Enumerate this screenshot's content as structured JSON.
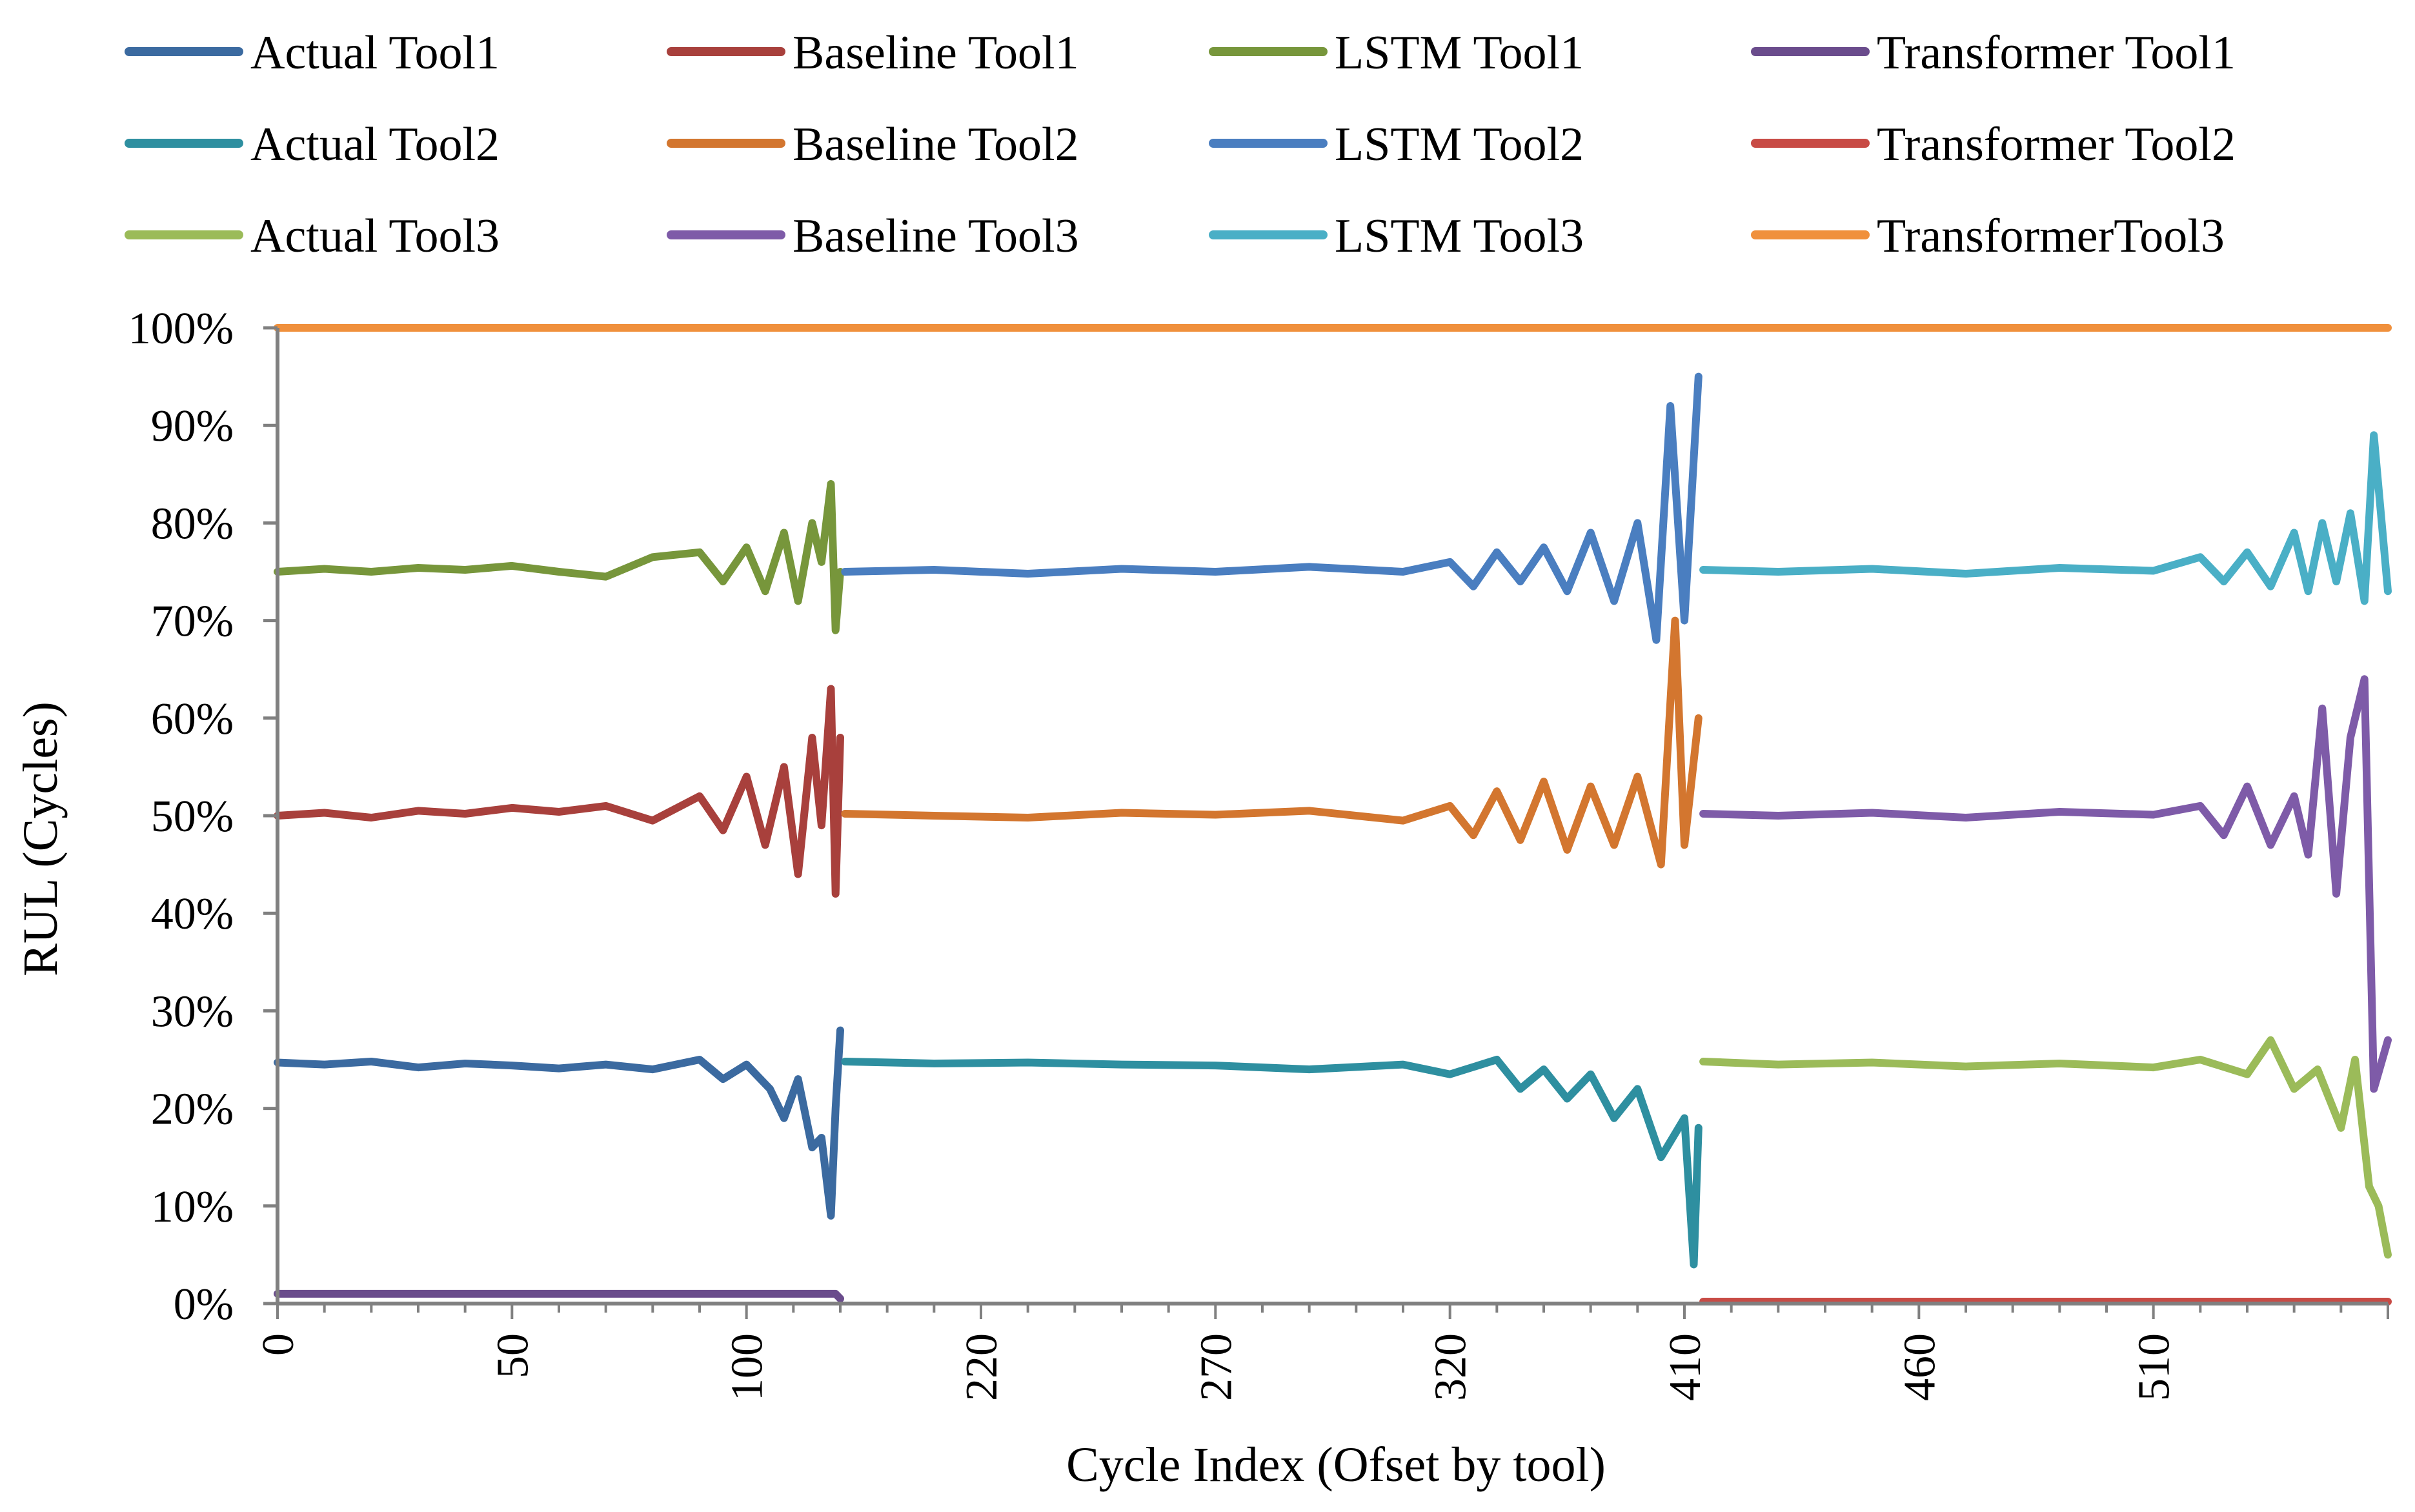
{
  "chart_data": {
    "type": "line",
    "title": "",
    "xlabel": "Cycle Index (Ofset by tool)",
    "ylabel": "RUL (Cycles)",
    "ylim": [
      0,
      100
    ],
    "y_ticks": [
      "0%",
      "10%",
      "20%",
      "30%",
      "40%",
      "50%",
      "60%",
      "70%",
      "80%",
      "90%",
      "100%"
    ],
    "x_ticks": [
      "0",
      "50",
      "100",
      "220",
      "270",
      "320",
      "410",
      "460",
      "510"
    ],
    "x_index_range": [
      0,
      450
    ],
    "grid": false,
    "legend_position": "top",
    "series": [
      {
        "name": "Actual Tool1",
        "color": "#3B6AA0",
        "x": [
          0,
          10,
          20,
          30,
          40,
          50,
          60,
          70,
          80,
          90,
          95,
          100,
          105,
          108,
          111,
          114,
          116,
          118,
          119,
          120
        ],
        "y": [
          24.7,
          24.5,
          24.8,
          24.2,
          24.6,
          24.4,
          24.1,
          24.5,
          24.0,
          25.0,
          23.0,
          24.5,
          22.0,
          19.0,
          23.0,
          16.0,
          17.0,
          9.0,
          20.0,
          28.0
        ]
      },
      {
        "name": "Baseline Tool1",
        "color": "#A8403C",
        "x": [
          0,
          10,
          20,
          30,
          40,
          50,
          60,
          70,
          80,
          90,
          95,
          100,
          104,
          108,
          111,
          114,
          116,
          118,
          119,
          120
        ],
        "y": [
          50.0,
          50.3,
          49.8,
          50.5,
          50.2,
          50.8,
          50.4,
          51.0,
          49.5,
          52.0,
          48.5,
          54.0,
          47.0,
          55.0,
          44.0,
          58.0,
          49.0,
          63.0,
          42.0,
          58.0
        ]
      },
      {
        "name": "LSTM Tool1",
        "color": "#77963B",
        "x": [
          0,
          10,
          20,
          30,
          40,
          50,
          60,
          70,
          80,
          90,
          95,
          100,
          104,
          108,
          111,
          114,
          116,
          118,
          119,
          120
        ],
        "y": [
          75.0,
          75.3,
          75.0,
          75.4,
          75.2,
          75.6,
          75.0,
          74.5,
          76.5,
          77.0,
          74.0,
          77.5,
          73.0,
          79.0,
          72.0,
          80.0,
          76.0,
          84.0,
          69.0,
          75.0
        ]
      },
      {
        "name": "Transformer Tool1",
        "color": "#6A4C8C",
        "x": [
          0,
          119,
          120
        ],
        "y": [
          1.0,
          1.0,
          0.5
        ]
      },
      {
        "name": "Actual Tool2",
        "color": "#2E8FA0",
        "x": [
          121,
          140,
          160,
          180,
          200,
          220,
          240,
          250,
          260,
          265,
          270,
          275,
          280,
          285,
          290,
          295,
          300,
          302,
          303
        ],
        "y": [
          24.8,
          24.6,
          24.7,
          24.5,
          24.4,
          24.0,
          24.5,
          23.5,
          25.0,
          22.0,
          24.0,
          21.0,
          23.5,
          19.0,
          22.0,
          15.0,
          19.0,
          4.0,
          18.0
        ]
      },
      {
        "name": "Baseline Tool2",
        "color": "#D3762F",
        "x": [
          121,
          140,
          160,
          180,
          200,
          220,
          240,
          250,
          255,
          260,
          265,
          270,
          275,
          280,
          285,
          290,
          295,
          298,
          300,
          303
        ],
        "y": [
          50.2,
          50.0,
          49.8,
          50.3,
          50.1,
          50.5,
          49.5,
          51.0,
          48.0,
          52.5,
          47.5,
          53.5,
          46.5,
          53.0,
          47.0,
          54.0,
          45.0,
          70.0,
          47.0,
          60.0
        ]
      },
      {
        "name": "LSTM Tool2",
        "color": "#4A7EC0",
        "x": [
          121,
          140,
          160,
          180,
          200,
          220,
          240,
          250,
          255,
          260,
          265,
          270,
          275,
          280,
          285,
          290,
          294,
          297,
          300,
          303
        ],
        "y": [
          75.0,
          75.2,
          74.8,
          75.3,
          75.0,
          75.5,
          75.0,
          76.0,
          73.5,
          77.0,
          74.0,
          77.5,
          73.0,
          79.0,
          72.0,
          80.0,
          68.0,
          92.0,
          70.0,
          95.0
        ]
      },
      {
        "name": "Transformer Tool2",
        "color": "#C84B45",
        "x": [
          304,
          450
        ],
        "y": [
          0.2,
          0.2
        ]
      },
      {
        "name": "Actual Tool3",
        "color": "#9BBB59",
        "x": [
          304,
          320,
          340,
          360,
          380,
          400,
          410,
          420,
          425,
          430,
          435,
          440,
          443,
          446,
          448,
          450
        ],
        "y": [
          24.8,
          24.5,
          24.7,
          24.3,
          24.6,
          24.2,
          25.0,
          23.5,
          27.0,
          22.0,
          24.0,
          18.0,
          25.0,
          12.0,
          10.0,
          5.0
        ]
      },
      {
        "name": "Baseline Tool3",
        "color": "#7E5BA8",
        "x": [
          304,
          320,
          340,
          360,
          380,
          400,
          410,
          415,
          420,
          425,
          430,
          433,
          436,
          439,
          442,
          445,
          447,
          450
        ],
        "y": [
          50.2,
          50.0,
          50.3,
          49.8,
          50.4,
          50.1,
          51.0,
          48.0,
          53.0,
          47.0,
          52.0,
          46.0,
          61.0,
          42.0,
          58.0,
          64.0,
          22.0,
          27.0
        ]
      },
      {
        "name": "LSTM Tool3",
        "color": "#4AAFC6",
        "x": [
          304,
          320,
          340,
          360,
          380,
          400,
          410,
          415,
          420,
          425,
          430,
          433,
          436,
          439,
          442,
          445,
          447,
          450
        ],
        "y": [
          75.2,
          75.0,
          75.3,
          74.8,
          75.4,
          75.1,
          76.5,
          74.0,
          77.0,
          73.5,
          79.0,
          73.0,
          80.0,
          74.0,
          81.0,
          72.0,
          89.0,
          73.0
        ]
      },
      {
        "name": "TransformerTool3",
        "color": "#F0903C",
        "x": [
          0,
          450
        ],
        "y": [
          100.0,
          100.0
        ]
      }
    ]
  }
}
